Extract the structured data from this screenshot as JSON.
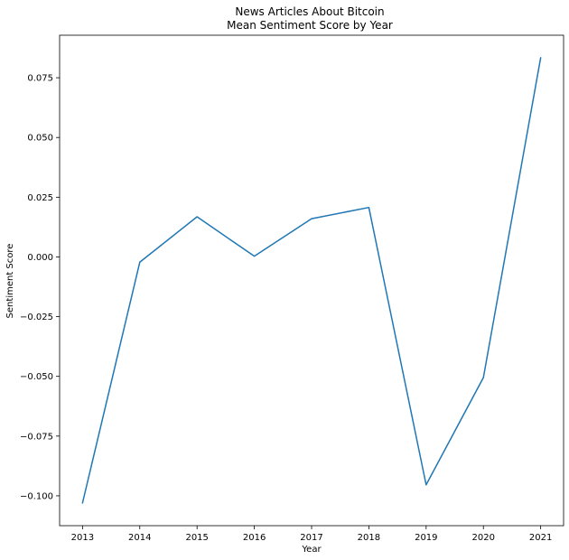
{
  "chart_data": {
    "type": "line",
    "title": "News Articles About Bitcoin",
    "subtitle": "Mean Sentiment Score by Year",
    "xlabel": "Year",
    "ylabel": "Sentiment Score",
    "x": [
      2013,
      2014,
      2015,
      2016,
      2017,
      2018,
      2019,
      2020,
      2021
    ],
    "xtick_labels": [
      "2013",
      "2014",
      "2015",
      "2016",
      "2017",
      "2018",
      "2019",
      "2020",
      "2021"
    ],
    "ytick_labels": [
      "−0.100",
      "−0.075",
      "−0.050",
      "−0.025",
      "0.000",
      "0.025",
      "0.050",
      "0.075"
    ],
    "ytick_values": [
      -0.1,
      -0.075,
      -0.05,
      -0.025,
      0.0,
      0.025,
      0.05,
      0.075
    ],
    "series": [
      {
        "values": [
          -0.103,
          -0.0022,
          0.0168,
          0.0003,
          0.016,
          0.0207,
          -0.0954,
          -0.0505,
          0.0834
        ],
        "color": "#1f77b4"
      }
    ],
    "xlim": [
      2012.6,
      2021.4
    ],
    "ylim": [
      -0.1125,
      0.0928
    ],
    "grid": false,
    "legend": false
  }
}
